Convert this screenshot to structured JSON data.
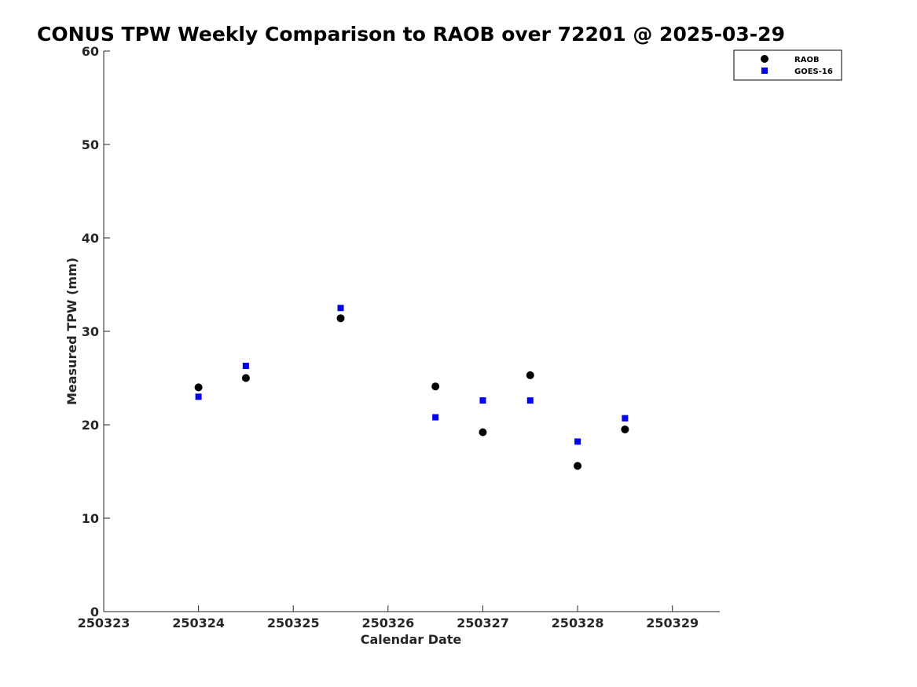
{
  "chart_data": {
    "type": "scatter",
    "title": "CONUS TPW Weekly Comparison to RAOB over 72201 @ 2025-03-29",
    "xlabel": "Calendar Date",
    "ylabel": "Measured TPW (mm)",
    "x_tick_labels": [
      "250323",
      "250324",
      "250325",
      "250326",
      "250327",
      "250328",
      "250329"
    ],
    "x_tick_values": [
      0,
      1,
      2,
      3,
      4,
      5,
      6
    ],
    "xlim": [
      0,
      6.5
    ],
    "y_ticks": [
      0,
      10,
      20,
      30,
      40,
      50,
      60
    ],
    "ylim": [
      0,
      60
    ],
    "grid": false,
    "legend_position": "top-right",
    "series": [
      {
        "name": "RAOB",
        "marker": "circle",
        "color": "#000000",
        "x": [
          1.0,
          1.5,
          2.5,
          3.5,
          4.0,
          4.5,
          5.0,
          5.5
        ],
        "y": [
          24.0,
          25.0,
          31.4,
          24.1,
          19.2,
          25.3,
          15.6,
          19.5
        ]
      },
      {
        "name": "GOES-16",
        "marker": "square",
        "color": "#0000ff",
        "x": [
          1.0,
          1.5,
          2.5,
          3.5,
          4.0,
          4.5,
          5.0,
          5.5
        ],
        "y": [
          23.0,
          26.3,
          32.5,
          20.8,
          22.6,
          22.6,
          18.2,
          20.7
        ]
      }
    ]
  }
}
